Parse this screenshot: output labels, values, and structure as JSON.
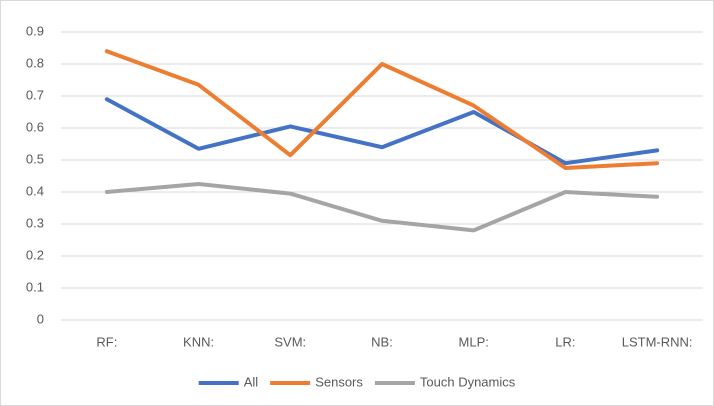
{
  "chart_data": {
    "type": "line",
    "categories": [
      "RF:",
      "KNN:",
      "SVM:",
      "NB:",
      "MLP:",
      "LR:",
      "LSTM-RNN:"
    ],
    "series": [
      {
        "name": "All",
        "color": "#4472c4",
        "values": [
          0.69,
          0.535,
          0.605,
          0.54,
          0.65,
          0.49,
          0.53
        ]
      },
      {
        "name": "Sensors",
        "color": "#ed7d31",
        "values": [
          0.84,
          0.735,
          0.515,
          0.8,
          0.67,
          0.475,
          0.49
        ]
      },
      {
        "name": "Touch Dynamics",
        "color": "#a5a5a5",
        "values": [
          0.4,
          0.425,
          0.395,
          0.31,
          0.28,
          0.4,
          0.385
        ]
      }
    ],
    "ylim": [
      0,
      0.9
    ],
    "yticks": [
      0,
      0.1,
      0.2,
      0.3,
      0.4,
      0.5,
      0.6,
      0.7,
      0.8,
      0.9
    ],
    "grid": true,
    "legend": "bottom"
  }
}
